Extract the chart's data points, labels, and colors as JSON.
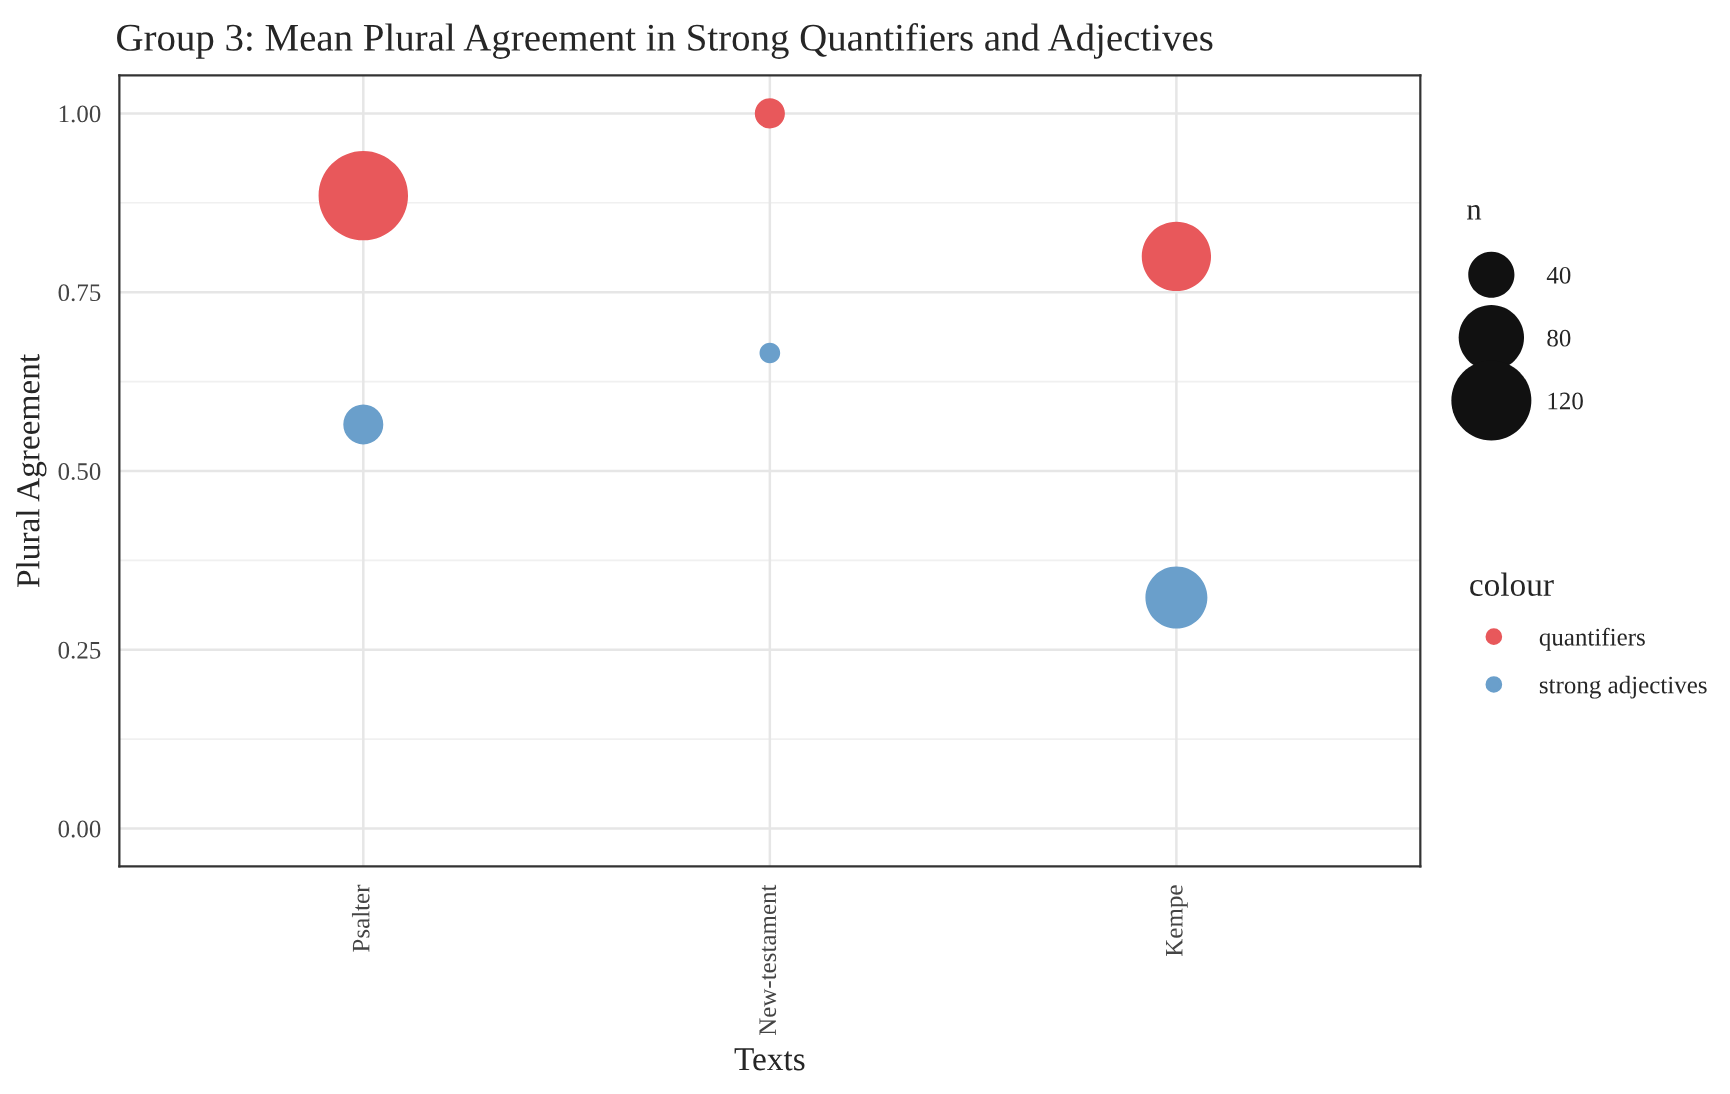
{
  "chart_data": {
    "type": "bubble",
    "title": "Group 3: Mean Plural Agreement in Strong Quantifiers and Adjectives",
    "xlabel": "Texts",
    "ylabel": "Plural Agreement",
    "legend_title": "colour",
    "annotations": [
      "n"
    ],
    "categories": [
      "Psalter",
      "New-testament",
      "Kempe"
    ],
    "series": [
      {
        "name": "quantifiers",
        "color": "#e8585b",
        "values": [
          0.885,
          1.0,
          0.8
        ],
        "sizes": [
          150,
          17,
          90
        ]
      },
      {
        "name": "strong adjectives",
        "color": "#6a9fcb",
        "values": [
          0.565,
          0.665,
          0.323
        ],
        "sizes": [
          30,
          8,
          72
        ]
      }
    ],
    "size_legend": [
      40,
      80,
      120
    ],
    "ylim": [
      -0.053,
      1.053
    ],
    "yticks": [
      {
        "value": 0,
        "label": "0.00"
      },
      {
        "value": 0.25,
        "label": "0.25"
      },
      {
        "value": 0.5,
        "label": "0.50"
      },
      {
        "value": 0.75,
        "label": "0.75"
      },
      {
        "value": 1,
        "label": "1.00"
      }
    ],
    "grid": true,
    "legend": "right"
  }
}
